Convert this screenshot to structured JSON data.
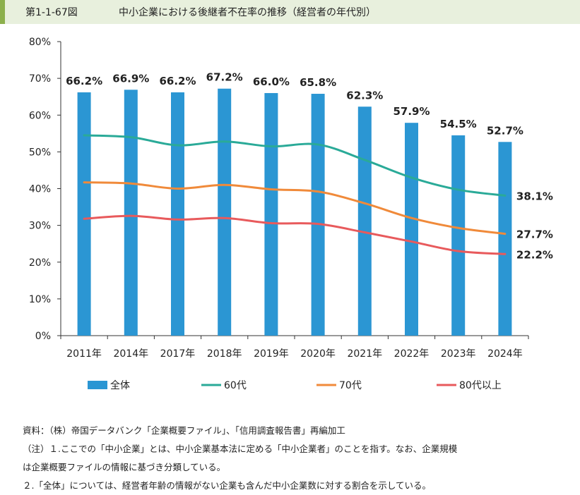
{
  "header": {
    "figure_number": "第1-1-67図",
    "title": "中小企業における後継者不在率の推移（経営者の年代別）"
  },
  "chart_data": {
    "type": "bar",
    "categories": [
      "2011年",
      "2014年",
      "2017年",
      "2018年",
      "2019年",
      "2020年",
      "2021年",
      "2022年",
      "2023年",
      "2024年"
    ],
    "ylim": [
      0,
      80
    ],
    "yticks": [
      "0%",
      "10%",
      "20%",
      "30%",
      "40%",
      "50%",
      "60%",
      "70%",
      "80%"
    ],
    "grid": false,
    "legend_position": "bottom",
    "bar_series": {
      "name": "全体",
      "color": "#2b96d3",
      "values": [
        66.2,
        66.9,
        66.2,
        67.2,
        66.0,
        65.8,
        62.3,
        57.9,
        54.5,
        52.7
      ],
      "labels": [
        "66.2%",
        "66.9%",
        "66.2%",
        "67.2%",
        "66.0%",
        "65.8%",
        "62.3%",
        "57.9%",
        "54.5%",
        "52.7%"
      ]
    },
    "line_series": [
      {
        "name": "60代",
        "color": "#2aaa98",
        "values": [
          54.5,
          54.0,
          51.8,
          52.8,
          51.5,
          52.0,
          47.8,
          43.0,
          39.7,
          38.1
        ],
        "end_label": "38.1%"
      },
      {
        "name": "70代",
        "color": "#f08a3a",
        "values": [
          41.7,
          41.4,
          40.0,
          41.0,
          39.8,
          39.2,
          36.0,
          32.0,
          29.3,
          27.7
        ],
        "end_label": "27.7%"
      },
      {
        "name": "80代以上",
        "color": "#e85a5c",
        "values": [
          31.8,
          32.6,
          31.6,
          32.0,
          30.6,
          30.4,
          28.1,
          25.6,
          23.0,
          22.2
        ],
        "end_label": "22.2%"
      }
    ]
  },
  "notes": {
    "source": "資料：（株）帝国データバンク「企業概要ファイル」、「信用調査報告書」再編加工",
    "note1": "（注）１.ここでの「中小企業」とは、中小企業基本法に定める「中小企業者」のことを指す。なお、企業規模",
    "note1b": "は企業概要ファイルの情報に基づき分類している。",
    "note2": "２.「全体」については、経営者年齢の情報がない企業も含んだ中小企業数に対する割合を示している。"
  }
}
